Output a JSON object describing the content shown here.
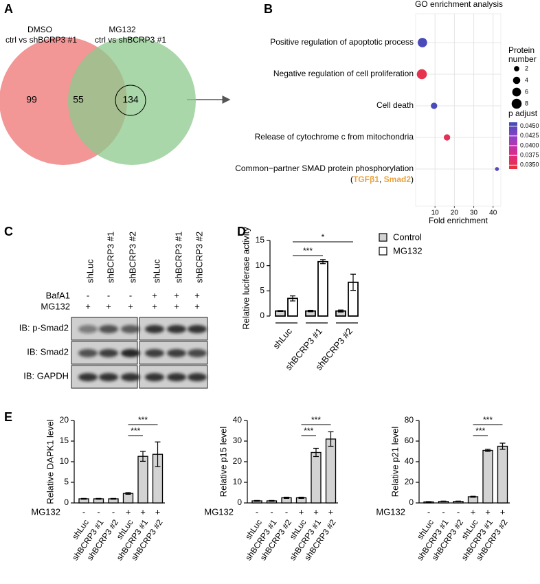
{
  "panel_labels": [
    "A",
    "B",
    "C",
    "D",
    "E"
  ],
  "venn": {
    "sets": [
      {
        "name": "DMSO",
        "subtitle": "ctrl vs shBCRP3 #1",
        "color": "#f08484"
      },
      {
        "name": "MG132",
        "subtitle": "ctrl vs shBCRP3 #1",
        "color": "#8cca8c"
      }
    ],
    "counts": {
      "left": 99,
      "both": 55,
      "right": 134
    }
  },
  "blot": {
    "lanes": [
      "shLuc",
      "shBCRP3 #1",
      "shBCRP3 #2",
      "shLuc",
      "shBCRP3 #1",
      "shBCRP3 #2"
    ],
    "treatments": [
      {
        "label": "BafA1",
        "values": [
          "-",
          "-",
          "-",
          "+",
          "+",
          "+"
        ]
      },
      {
        "label": "MG132",
        "values": [
          "+",
          "+",
          "+",
          "+",
          "+",
          "+"
        ]
      }
    ],
    "blots": [
      "IB: p-Smad2",
      "IB: Smad2",
      "IB: GAPDH"
    ]
  },
  "chart_data": [
    {
      "type": "bubble",
      "title": "GO enrichment analysis",
      "categories": [
        "Positive regulation of apoptotic process",
        "Negative regulation of cell proliferation",
        "Cell death",
        "Release of cytochrome c from mitochondria",
        "Common−partner SMAD protein phosphorylation"
      ],
      "x": [
        3.5,
        3.2,
        9.5,
        16.2,
        42
      ],
      "sizes": [
        7,
        8,
        3,
        3,
        1
      ],
      "p_adjust": [
        0.0455,
        0.035,
        0.0455,
        0.0355,
        0.0448
      ],
      "xlim": [
        0,
        44
      ],
      "xticks": [
        10,
        20,
        30,
        40
      ],
      "xlabel": "Fold enrichment",
      "grid": true,
      "annotation": {
        "parts": [
          "(",
          "TGFβ1",
          ", ",
          "Smad2",
          ")"
        ],
        "colors": [
          "#000000",
          "#eba23a",
          "#000000",
          "#eba23a",
          "#000000"
        ]
      },
      "size_legend": {
        "title": [
          "Protein",
          "number"
        ],
        "values": [
          2,
          4,
          6,
          8
        ]
      },
      "color_legend": {
        "title": "p adjust",
        "lim": [
          0.034,
          0.046
        ],
        "colormap": [
          "#e8333a",
          "#de2a8c",
          "#9440c8",
          "#3f4cb8"
        ],
        "ticks": [
          {
            "value": 0.045,
            "label": "0.0450"
          },
          {
            "value": 0.0425,
            "label": "0.0425"
          },
          {
            "value": 0.04,
            "label": "0.0400"
          },
          {
            "value": 0.0375,
            "label": "0.0375"
          },
          {
            "value": 0.035,
            "label": "0.0350"
          }
        ]
      }
    },
    {
      "type": "grouped_bar",
      "ylabel": "Relative luciferase activity",
      "categories": [
        "shLuc",
        "shBCRP3 #1",
        "shBCRP3 #2"
      ],
      "series": [
        {
          "name": "Control",
          "color": "#d3d3d3",
          "values": [
            1,
            1,
            1
          ],
          "errors": [
            0.1,
            0.15,
            0.2
          ]
        },
        {
          "name": "MG132",
          "color": "#ffffff",
          "values": [
            3.5,
            10.8,
            6.7
          ],
          "errors": [
            0.5,
            0.4,
            1.6
          ]
        }
      ],
      "ylim": [
        0,
        15
      ],
      "yticks": [
        0,
        5,
        10,
        15
      ],
      "significance": [
        {
          "label": "***",
          "between": [
            0,
            1
          ]
        },
        {
          "label": "*",
          "between": [
            0,
            2
          ]
        }
      ]
    },
    {
      "type": "bar",
      "ylabel": "Relative DAPK1 level",
      "categories": [
        "shLuc",
        "shBCRP3 #1",
        "shBCRP3 #2",
        "shLuc",
        "shBCRP3 #1",
        "shBCRP3 #2"
      ],
      "values": [
        1,
        1,
        1,
        2.3,
        11.3,
        11.8
      ],
      "errors": [
        0.1,
        0.1,
        0.1,
        0.2,
        1.2,
        3
      ],
      "color": "#d3d3d3",
      "ylim": [
        0,
        20
      ],
      "yticks": [
        0,
        5,
        10,
        15,
        20
      ],
      "condition": {
        "label": "MG132",
        "values": [
          "-",
          "-",
          "-",
          "+",
          "+",
          "+"
        ]
      },
      "significance": [
        {
          "label": "***",
          "between": [
            3,
            4
          ]
        },
        {
          "label": "***",
          "between": [
            3,
            5
          ]
        }
      ]
    },
    {
      "type": "bar",
      "ylabel": "Relative p15 level",
      "categories": [
        "shLuc",
        "shBCRP3 #1",
        "shBCRP3 #2",
        "shLuc",
        "shBCRP3 #1",
        "shBCRP3 #2"
      ],
      "values": [
        1,
        1,
        2.5,
        2.5,
        24.5,
        31
      ],
      "errors": [
        0.2,
        0.2,
        0.3,
        0.3,
        2,
        3.5
      ],
      "color": "#d3d3d3",
      "ylim": [
        0,
        40
      ],
      "yticks": [
        0,
        10,
        20,
        30,
        40
      ],
      "condition": {
        "label": "MG132",
        "values": [
          "-",
          "-",
          "-",
          "+",
          "+",
          "+"
        ]
      },
      "significance": [
        {
          "label": "***",
          "between": [
            3,
            4
          ]
        },
        {
          "label": "***",
          "between": [
            3,
            5
          ]
        }
      ]
    },
    {
      "type": "bar",
      "ylabel": "Relative p21 level",
      "categories": [
        "shLuc",
        "shBCRP3 #1",
        "shBCRP3 #2",
        "shLuc",
        "shBCRP3 #1",
        "shBCRP3 #2"
      ],
      "values": [
        1,
        1.5,
        1.5,
        6,
        51,
        55
      ],
      "errors": [
        0.3,
        0.3,
        0.3,
        0.5,
        1,
        3
      ],
      "color": "#d3d3d3",
      "ylim": [
        0,
        80
      ],
      "yticks": [
        0,
        20,
        40,
        60,
        80
      ],
      "condition": {
        "label": "MG132",
        "values": [
          "-",
          "-",
          "-",
          "+",
          "+",
          "+"
        ]
      },
      "significance": [
        {
          "label": "***",
          "between": [
            3,
            4
          ]
        },
        {
          "label": "***",
          "between": [
            3,
            5
          ]
        }
      ]
    }
  ]
}
